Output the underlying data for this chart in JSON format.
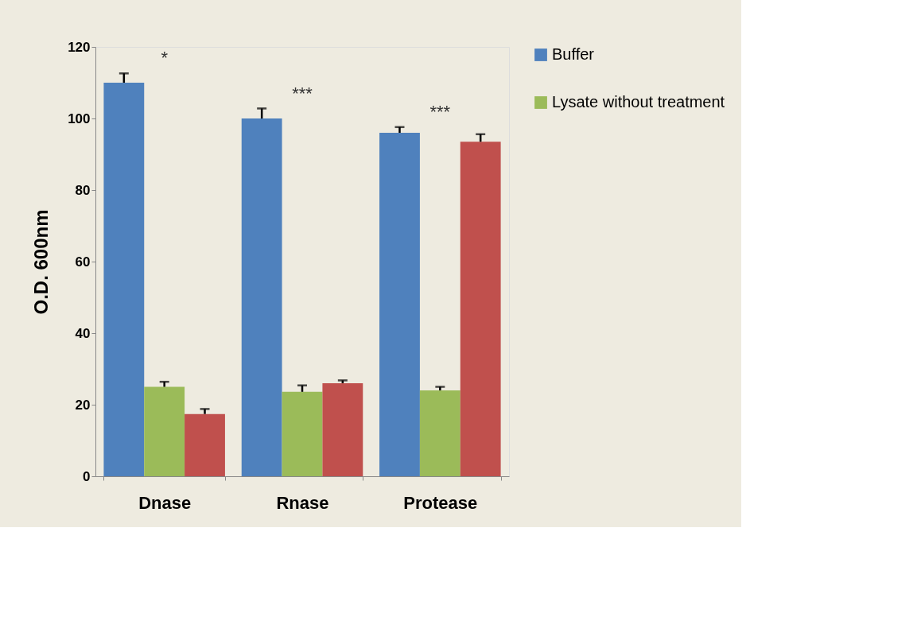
{
  "chart_data": {
    "type": "bar",
    "ylabel": "O.D. 600nm",
    "categories": [
      "Dnase",
      "Rnase",
      "Protease"
    ],
    "series": [
      {
        "name": "Buffer",
        "color": "#4f81bd",
        "values": [
          110,
          100,
          96
        ],
        "errors": [
          [
            110,
            112.6
          ],
          [
            100,
            102.8
          ],
          [
            96,
            97.6
          ]
        ]
      },
      {
        "name": "Lysate without treatment",
        "color": "#9bbb59",
        "values": [
          25,
          23.6,
          24
        ],
        "errors": [
          [
            25,
            26.4
          ],
          [
            23.6,
            25.4
          ],
          [
            24,
            25
          ]
        ]
      },
      {
        "color": "#c0504d",
        "values": [
          17.4,
          26,
          93.5
        ],
        "errors": [
          [
            17.4,
            18.8
          ],
          [
            26,
            26.8
          ],
          [
            93.5,
            95.6
          ]
        ]
      }
    ],
    "ylim": [
      0,
      120
    ],
    "yticks": [
      0,
      20,
      40,
      60,
      80,
      100,
      120
    ],
    "grid": false,
    "legend": "right",
    "annotations": [
      "*",
      "***",
      "***"
    ]
  }
}
